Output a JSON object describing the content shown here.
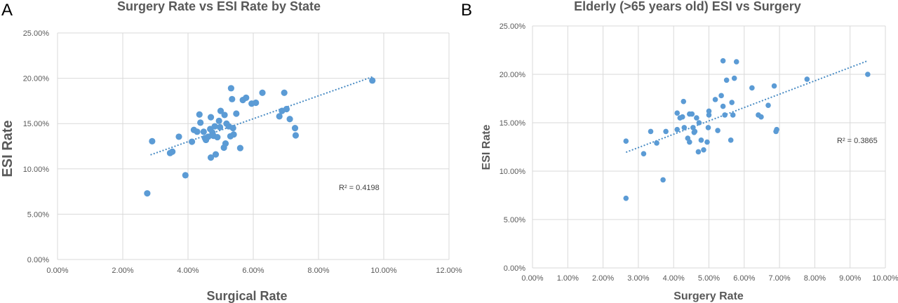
{
  "chart_data": [
    {
      "type": "scatter",
      "panel_label": "A",
      "title": "Surgery Rate vs ESI Rate by State",
      "xlabel": "Surgical Rate",
      "ylabel": "ESI Rate",
      "xlim": [
        0,
        0.12
      ],
      "ylim": [
        0,
        0.25
      ],
      "x_ticks": [
        "0.00%",
        "2.00%",
        "4.00%",
        "6.00%",
        "8.00%",
        "10.00%",
        "12.00%"
      ],
      "y_ticks": [
        "0.00%",
        "5.00%",
        "10.00%",
        "15.00%",
        "20.00%",
        "25.00%"
      ],
      "grid": true,
      "point_color": "#5b9bd5",
      "trendline": {
        "type": "linear",
        "x": [
          0.0285,
          0.0965
        ],
        "y": [
          0.1155,
          0.2015
        ],
        "style": "dotted"
      },
      "r2_label": "R² = 0.4198",
      "points": [
        {
          "x": 0.0275,
          "y": 0.073
        },
        {
          "x": 0.029,
          "y": 0.1305
        },
        {
          "x": 0.0345,
          "y": 0.1175
        },
        {
          "x": 0.0352,
          "y": 0.119
        },
        {
          "x": 0.0372,
          "y": 0.1355
        },
        {
          "x": 0.0392,
          "y": 0.093
        },
        {
          "x": 0.0412,
          "y": 0.13
        },
        {
          "x": 0.0418,
          "y": 0.143
        },
        {
          "x": 0.0428,
          "y": 0.141
        },
        {
          "x": 0.0435,
          "y": 0.16
        },
        {
          "x": 0.0438,
          "y": 0.151
        },
        {
          "x": 0.0448,
          "y": 0.141
        },
        {
          "x": 0.0452,
          "y": 0.134
        },
        {
          "x": 0.0455,
          "y": 0.132
        },
        {
          "x": 0.0462,
          "y": 0.1355
        },
        {
          "x": 0.0468,
          "y": 0.144
        },
        {
          "x": 0.047,
          "y": 0.157
        },
        {
          "x": 0.047,
          "y": 0.1125
        },
        {
          "x": 0.0475,
          "y": 0.14
        },
        {
          "x": 0.0478,
          "y": 0.1365
        },
        {
          "x": 0.0482,
          "y": 0.147
        },
        {
          "x": 0.0485,
          "y": 0.116
        },
        {
          "x": 0.049,
          "y": 0.135
        },
        {
          "x": 0.0495,
          "y": 0.153
        },
        {
          "x": 0.0498,
          "y": 0.146
        },
        {
          "x": 0.05,
          "y": 0.164
        },
        {
          "x": 0.051,
          "y": 0.1235
        },
        {
          "x": 0.0512,
          "y": 0.1595
        },
        {
          "x": 0.0515,
          "y": 0.128
        },
        {
          "x": 0.0518,
          "y": 0.15
        },
        {
          "x": 0.0525,
          "y": 0.147
        },
        {
          "x": 0.053,
          "y": 0.136
        },
        {
          "x": 0.0532,
          "y": 0.189
        },
        {
          "x": 0.0535,
          "y": 0.177
        },
        {
          "x": 0.0538,
          "y": 0.145
        },
        {
          "x": 0.054,
          "y": 0.138
        },
        {
          "x": 0.0548,
          "y": 0.161
        },
        {
          "x": 0.056,
          "y": 0.123
        },
        {
          "x": 0.0568,
          "y": 0.176
        },
        {
          "x": 0.0578,
          "y": 0.1785
        },
        {
          "x": 0.0595,
          "y": 0.172
        },
        {
          "x": 0.0608,
          "y": 0.173
        },
        {
          "x": 0.0628,
          "y": 0.184
        },
        {
          "x": 0.068,
          "y": 0.158
        },
        {
          "x": 0.0688,
          "y": 0.164
        },
        {
          "x": 0.0695,
          "y": 0.184
        },
        {
          "x": 0.0702,
          "y": 0.166
        },
        {
          "x": 0.0712,
          "y": 0.155
        },
        {
          "x": 0.0728,
          "y": 0.145
        },
        {
          "x": 0.073,
          "y": 0.137
        },
        {
          "x": 0.0965,
          "y": 0.1975
        }
      ]
    },
    {
      "type": "scatter",
      "panel_label": "B",
      "title": "Elderly (>65 years old) ESI vs Surgery",
      "xlabel": "Surgery Rate",
      "ylabel": "ESI Rate",
      "xlim": [
        0,
        0.1
      ],
      "ylim": [
        0,
        0.25
      ],
      "x_ticks": [
        "0.00%",
        "1.00%",
        "2.00%",
        "3.00%",
        "4.00%",
        "5.00%",
        "6.00%",
        "7.00%",
        "8.00%",
        "9.00%",
        "10.00%"
      ],
      "y_ticks": [
        "0.00%",
        "5.00%",
        "10.00%",
        "15.00%",
        "20.00%",
        "25.00%"
      ],
      "grid": true,
      "point_color": "#5b9bd5",
      "trendline": {
        "type": "linear",
        "x": [
          0.0265,
          0.095
        ],
        "y": [
          0.1195,
          0.214
        ],
        "style": "dotted"
      },
      "r2_label": "R² = 0.3865",
      "points": [
        {
          "x": 0.0265,
          "y": 0.072
        },
        {
          "x": 0.0265,
          "y": 0.131
        },
        {
          "x": 0.0315,
          "y": 0.118
        },
        {
          "x": 0.0335,
          "y": 0.141
        },
        {
          "x": 0.0352,
          "y": 0.129
        },
        {
          "x": 0.037,
          "y": 0.091
        },
        {
          "x": 0.0378,
          "y": 0.141
        },
        {
          "x": 0.041,
          "y": 0.16
        },
        {
          "x": 0.041,
          "y": 0.143
        },
        {
          "x": 0.0418,
          "y": 0.155
        },
        {
          "x": 0.0425,
          "y": 0.156
        },
        {
          "x": 0.0428,
          "y": 0.172
        },
        {
          "x": 0.043,
          "y": 0.145
        },
        {
          "x": 0.044,
          "y": 0.134
        },
        {
          "x": 0.0445,
          "y": 0.13
        },
        {
          "x": 0.0445,
          "y": 0.159
        },
        {
          "x": 0.0452,
          "y": 0.159
        },
        {
          "x": 0.0455,
          "y": 0.145
        },
        {
          "x": 0.0458,
          "y": 0.14
        },
        {
          "x": 0.046,
          "y": 0.141
        },
        {
          "x": 0.0465,
          "y": 0.155
        },
        {
          "x": 0.047,
          "y": 0.12
        },
        {
          "x": 0.0472,
          "y": 0.15
        },
        {
          "x": 0.0478,
          "y": 0.132
        },
        {
          "x": 0.0485,
          "y": 0.122
        },
        {
          "x": 0.0495,
          "y": 0.13
        },
        {
          "x": 0.0498,
          "y": 0.145
        },
        {
          "x": 0.05,
          "y": 0.162
        },
        {
          "x": 0.05,
          "y": 0.158
        },
        {
          "x": 0.0518,
          "y": 0.174
        },
        {
          "x": 0.0525,
          "y": 0.142
        },
        {
          "x": 0.0535,
          "y": 0.178
        },
        {
          "x": 0.054,
          "y": 0.214
        },
        {
          "x": 0.054,
          "y": 0.167
        },
        {
          "x": 0.0545,
          "y": 0.158
        },
        {
          "x": 0.055,
          "y": 0.194
        },
        {
          "x": 0.0562,
          "y": 0.132
        },
        {
          "x": 0.0565,
          "y": 0.171
        },
        {
          "x": 0.0568,
          "y": 0.158
        },
        {
          "x": 0.0572,
          "y": 0.196
        },
        {
          "x": 0.0578,
          "y": 0.213
        },
        {
          "x": 0.0622,
          "y": 0.186
        },
        {
          "x": 0.064,
          "y": 0.158
        },
        {
          "x": 0.0648,
          "y": 0.156
        },
        {
          "x": 0.0668,
          "y": 0.168
        },
        {
          "x": 0.0685,
          "y": 0.188
        },
        {
          "x": 0.069,
          "y": 0.141
        },
        {
          "x": 0.0692,
          "y": 0.143
        },
        {
          "x": 0.0778,
          "y": 0.195
        },
        {
          "x": 0.095,
          "y": 0.2
        }
      ]
    }
  ]
}
